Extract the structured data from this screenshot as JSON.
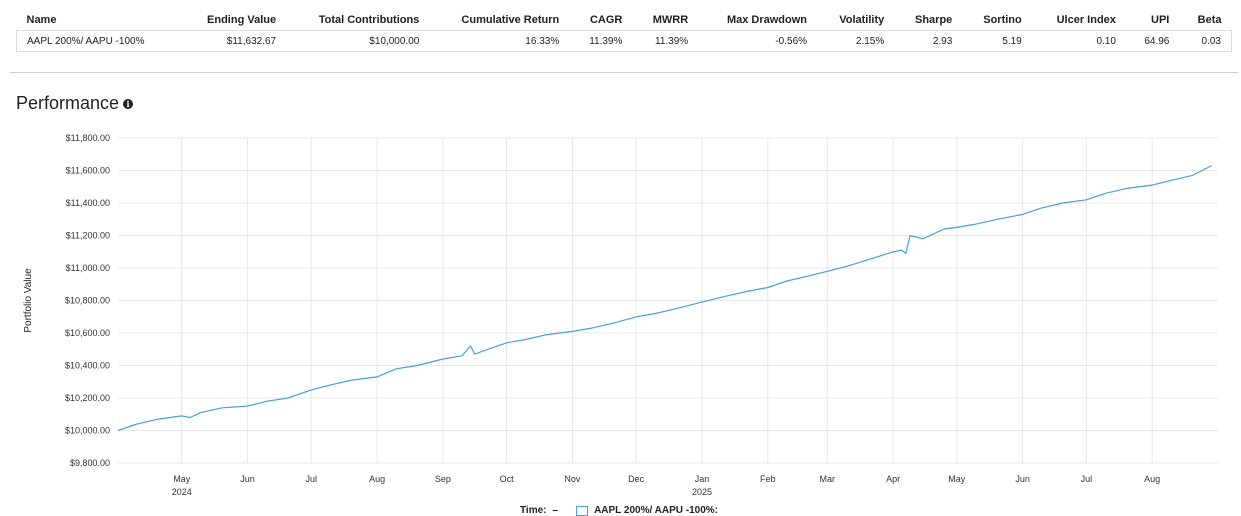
{
  "summary_table": {
    "headers": [
      "Name",
      "Ending Value",
      "Total Contributions",
      "Cumulative Return",
      "CAGR",
      "MWRR",
      "Max Drawdown",
      "Volatility",
      "Sharpe",
      "Sortino",
      "Ulcer Index",
      "UPI",
      "Beta"
    ],
    "rows": [
      [
        "AAPL 200%/ AAPU -100%",
        "$11,632.67",
        "$10,000.00",
        "16.33%",
        "11.39%",
        "11.39%",
        "-0.56%",
        "2.15%",
        "2.93",
        "5.19",
        "0.10",
        "64.96",
        "0.03"
      ]
    ]
  },
  "performance": {
    "title": "Performance",
    "info_icon": "info-circle-icon"
  },
  "legend": {
    "time_label": "Time:",
    "time_dash": "–",
    "series_label": "AAPL 200%/ AAPU -100%:"
  },
  "colors": {
    "series": "#4a9fd8",
    "grid": "#e8e8e8"
  },
  "chart_data": {
    "type": "line",
    "ylabel": "Portfolio Value",
    "xlabel": "",
    "ylim": [
      9800,
      11800
    ],
    "y_ticks": [
      "$9,800.00",
      "$10,000.00",
      "$10,200.00",
      "$10,400.00",
      "$10,600.00",
      "$10,800.00",
      "$11,000.00",
      "$11,200.00",
      "$11,400.00",
      "$11,600.00",
      "$11,800.00"
    ],
    "y_tick_values": [
      9800,
      10000,
      10200,
      10400,
      10600,
      10800,
      11000,
      11200,
      11400,
      11600,
      11800
    ],
    "x_range": [
      "2024-04-01",
      "2025-09-01"
    ],
    "x_ticks": [
      {
        "date": "2024-05-01",
        "label": "May",
        "year": "2024"
      },
      {
        "date": "2024-06-01",
        "label": "Jun",
        "year": ""
      },
      {
        "date": "2024-07-01",
        "label": "Jul",
        "year": ""
      },
      {
        "date": "2024-08-01",
        "label": "Aug",
        "year": ""
      },
      {
        "date": "2024-09-01",
        "label": "Sep",
        "year": ""
      },
      {
        "date": "2024-10-01",
        "label": "Oct",
        "year": ""
      },
      {
        "date": "2024-11-01",
        "label": "Nov",
        "year": ""
      },
      {
        "date": "2024-12-01",
        "label": "Dec",
        "year": ""
      },
      {
        "date": "2025-01-01",
        "label": "Jan",
        "year": "2025"
      },
      {
        "date": "2025-02-01",
        "label": "Feb",
        "year": ""
      },
      {
        "date": "2025-03-01",
        "label": "Mar",
        "year": ""
      },
      {
        "date": "2025-04-01",
        "label": "Apr",
        "year": ""
      },
      {
        "date": "2025-05-01",
        "label": "May",
        "year": ""
      },
      {
        "date": "2025-06-01",
        "label": "Jun",
        "year": ""
      },
      {
        "date": "2025-07-01",
        "label": "Jul",
        "year": ""
      },
      {
        "date": "2025-08-01",
        "label": "Aug",
        "year": ""
      }
    ],
    "grid": true,
    "series": [
      {
        "name": "AAPL 200%/ AAPU -100%",
        "x": [
          "2024-04-01",
          "2024-04-10",
          "2024-04-20",
          "2024-05-01",
          "2024-05-05",
          "2024-05-10",
          "2024-05-20",
          "2024-06-01",
          "2024-06-10",
          "2024-06-20",
          "2024-07-01",
          "2024-07-10",
          "2024-07-20",
          "2024-08-01",
          "2024-08-10",
          "2024-08-20",
          "2024-09-01",
          "2024-09-10",
          "2024-09-14",
          "2024-09-16",
          "2024-09-20",
          "2024-10-01",
          "2024-10-10",
          "2024-10-20",
          "2024-11-01",
          "2024-11-10",
          "2024-11-20",
          "2024-12-01",
          "2024-12-10",
          "2024-12-20",
          "2025-01-01",
          "2025-01-10",
          "2025-01-20",
          "2025-02-01",
          "2025-02-10",
          "2025-02-20",
          "2025-03-01",
          "2025-03-10",
          "2025-03-20",
          "2025-04-01",
          "2025-04-05",
          "2025-04-07",
          "2025-04-09",
          "2025-04-15",
          "2025-04-25",
          "2025-05-01",
          "2025-05-10",
          "2025-05-20",
          "2025-06-01",
          "2025-06-10",
          "2025-06-20",
          "2025-07-01",
          "2025-07-10",
          "2025-07-20",
          "2025-08-01",
          "2025-08-10",
          "2025-08-20",
          "2025-08-29"
        ],
        "values": [
          10000,
          10040,
          10070,
          10090,
          10080,
          10110,
          10140,
          10150,
          10180,
          10200,
          10250,
          10280,
          10310,
          10330,
          10380,
          10400,
          10440,
          10460,
          10520,
          10470,
          10490,
          10540,
          10560,
          10590,
          10610,
          10630,
          10660,
          10700,
          10720,
          10750,
          10790,
          10820,
          10850,
          10880,
          10920,
          10950,
          10980,
          11010,
          11050,
          11100,
          11110,
          11090,
          11200,
          11180,
          11240,
          11250,
          11270,
          11300,
          11330,
          11370,
          11400,
          11420,
          11460,
          11490,
          11510,
          11540,
          11570,
          11630
        ]
      }
    ]
  }
}
